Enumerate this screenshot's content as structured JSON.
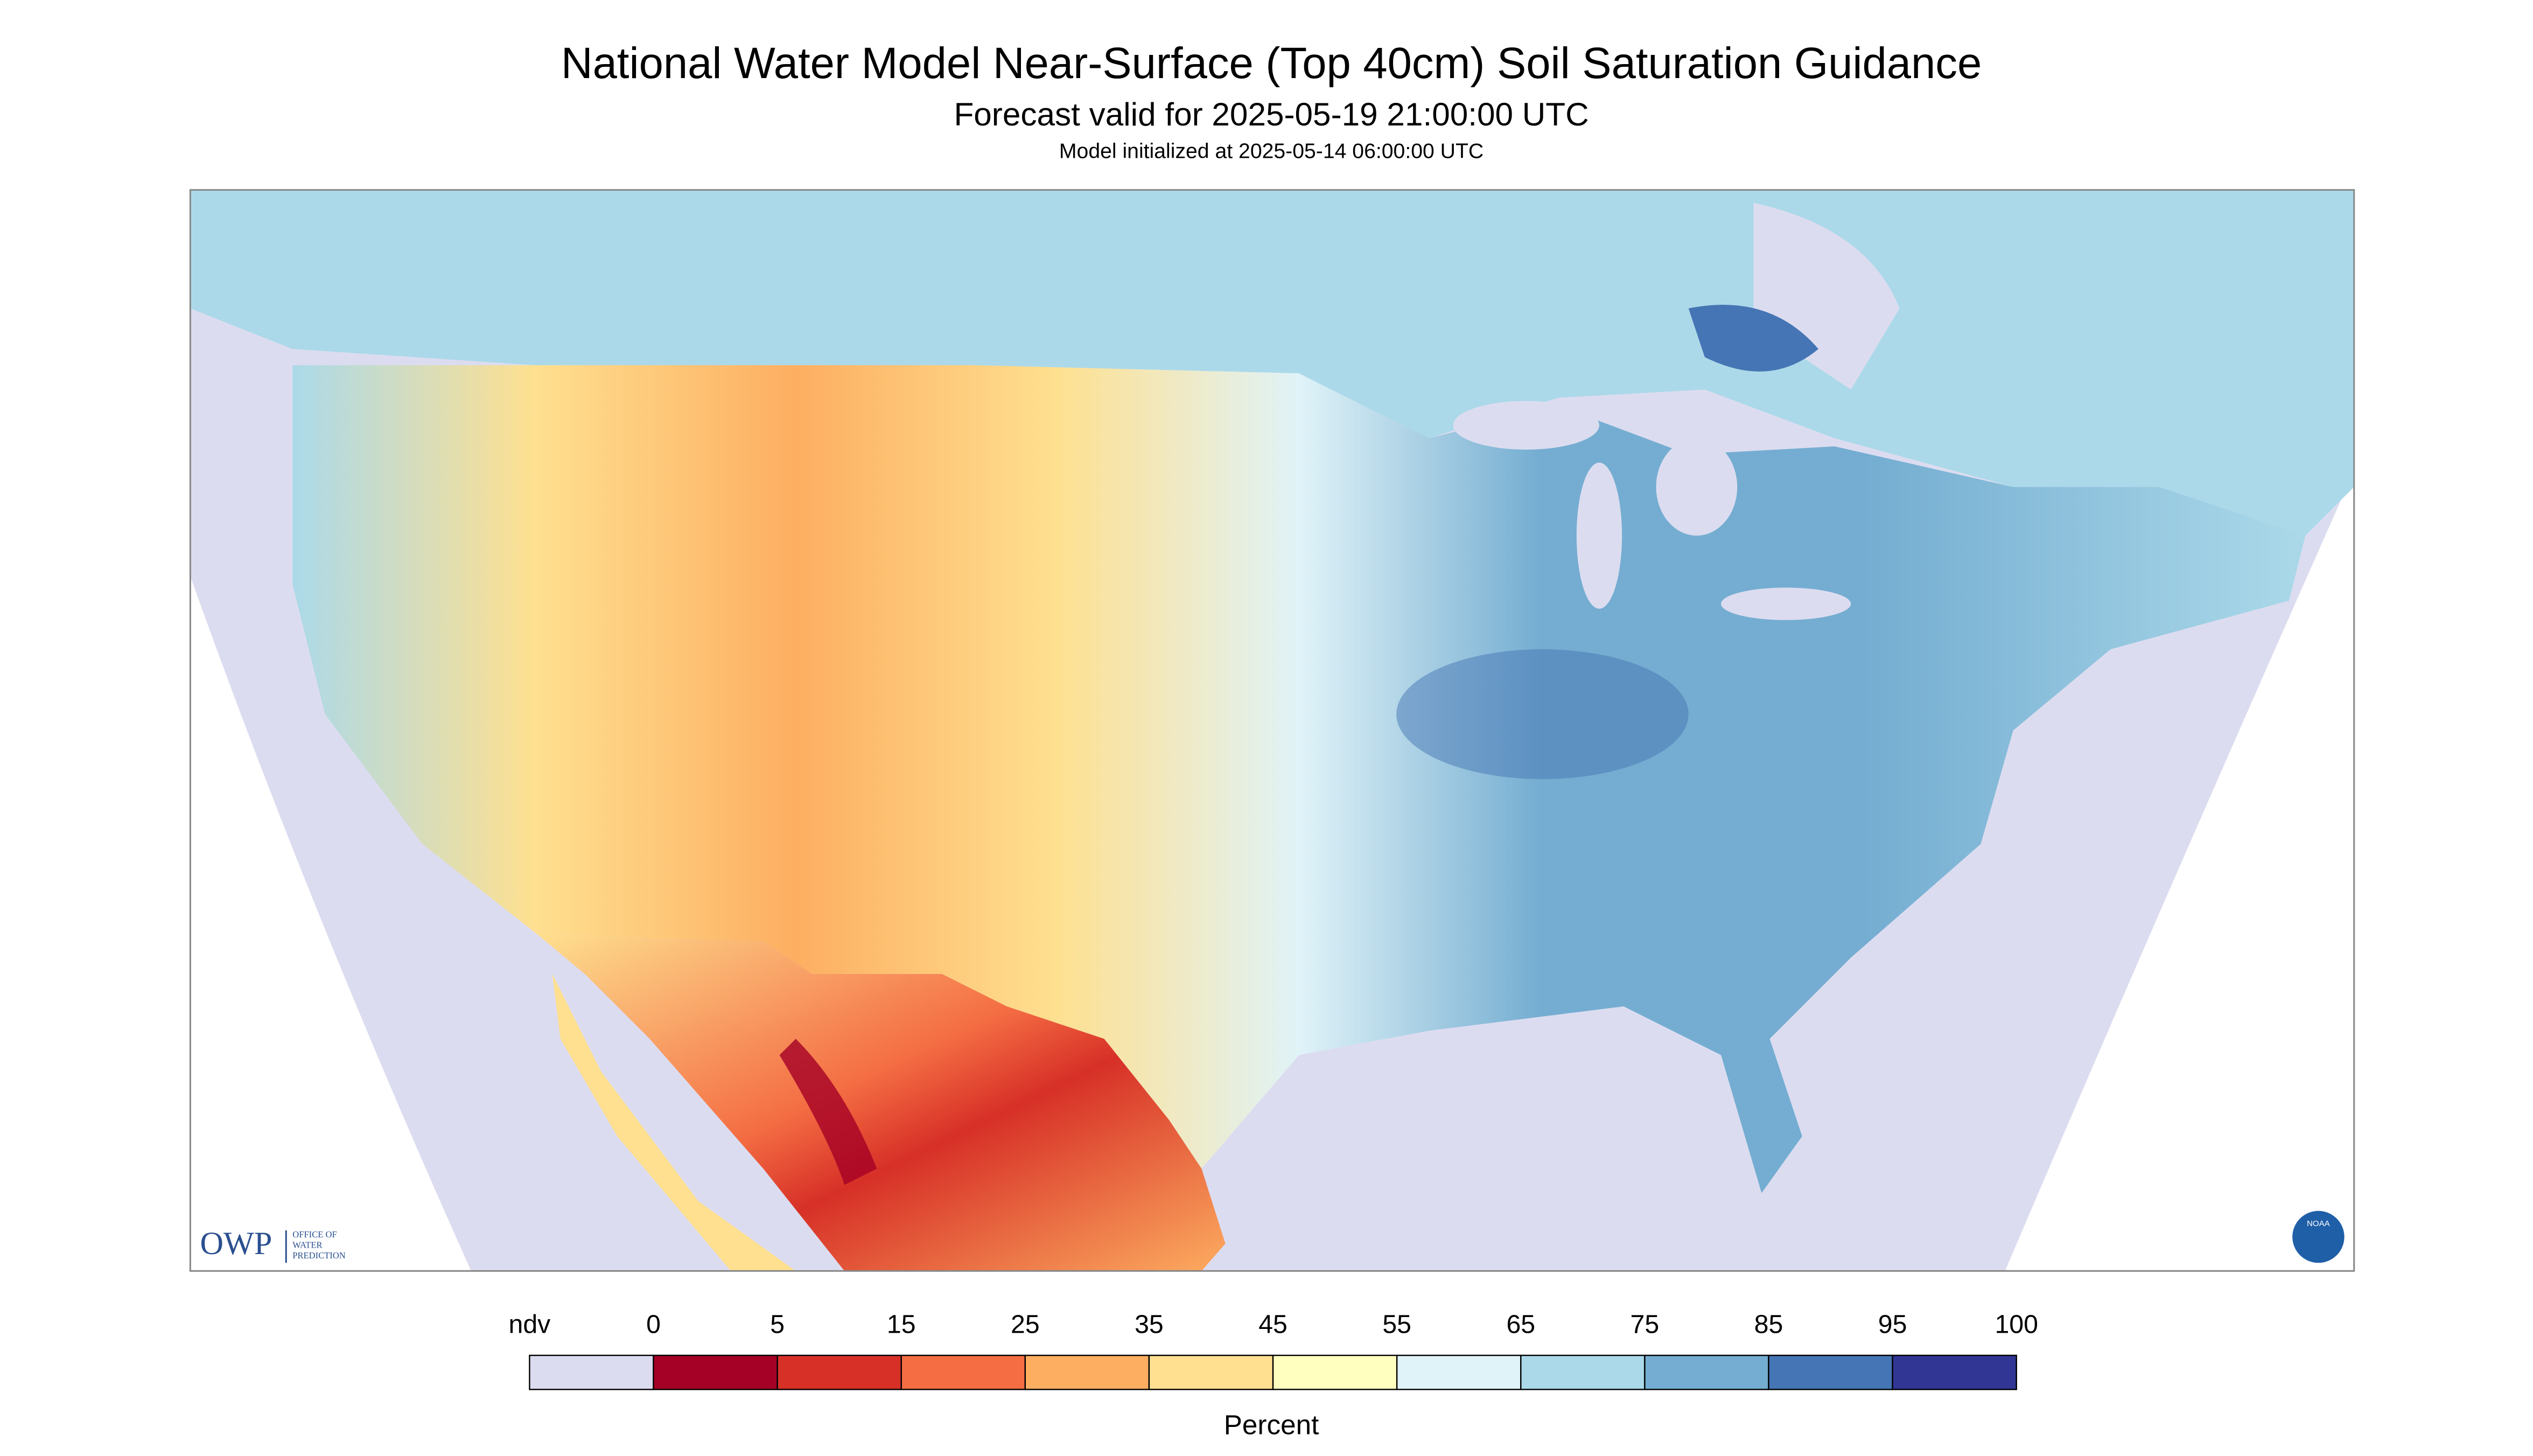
{
  "header": {
    "title": "National Water Model Near-Surface (Top 40cm) Soil Saturation Guidance",
    "subtitle": "Forecast valid for 2025-05-19 21:00:00 UTC",
    "note": "Model initialized at 2025-05-14 06:00:00 UTC"
  },
  "legend": {
    "labels": [
      "ndv",
      "0",
      "5",
      "15",
      "25",
      "35",
      "45",
      "55",
      "65",
      "75",
      "85",
      "95",
      "100"
    ],
    "colors": [
      "#dcdcf0",
      "#a50026",
      "#d73027",
      "#f46d43",
      "#fdae61",
      "#fee090",
      "#ffffbf",
      "#e0f3f8",
      "#abd9e9",
      "#74add1",
      "#4575b4",
      "#313695"
    ],
    "unit": "Percent"
  },
  "logos": {
    "owp": "OWP",
    "owp_lines": [
      "OFFICE OF",
      "WATER",
      "PREDICTION"
    ],
    "noaa": "NOAA"
  }
}
